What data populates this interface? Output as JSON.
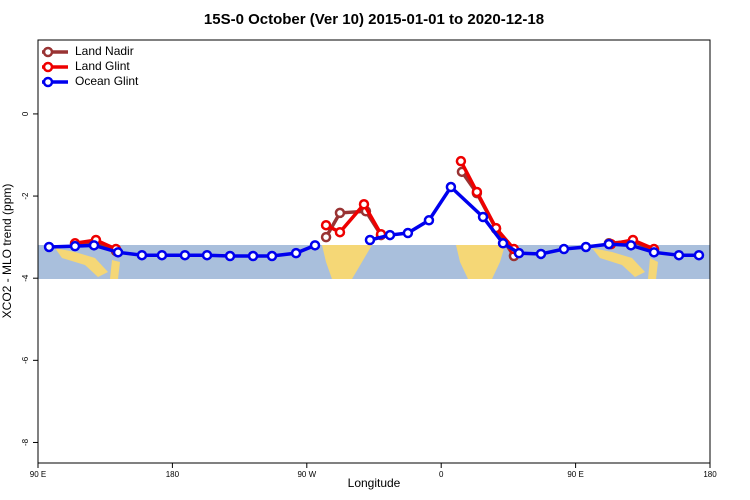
{
  "chart_data": {
    "type": "line",
    "title": "15S-0 October (Ver 10)   2015-01-01 to 2020-12-18",
    "x_label": "Longitude",
    "y_label": "XCO2 - MLO trend (ppm)",
    "xlim": [
      90,
      540
    ],
    "xticks": [
      {
        "value": 90,
        "label": "90 E"
      },
      180,
      {
        "value": 270,
        "label": "90 W"
      },
      {
        "value": 360,
        "label": "0"
      },
      {
        "value": 450,
        "label": "90 E"
      },
      {
        "value": 540,
        "label": "180"
      }
    ],
    "ylim": [
      -8.5,
      1.8
    ],
    "yticks": [
      0,
      -2,
      -4,
      -6,
      -8
    ],
    "legend": "top-left",
    "series": [
      {
        "name": "Land Nadir",
        "color": "#993333",
        "x": [
          114.8,
          128.8,
          142.2,
          null,
          282.9,
          292.2,
          309.6,
          319.7,
          null,
          373.9,
          383.9,
          396.7,
          408.7,
          null,
          472.3,
          488.4,
          502.5
        ],
        "values": [
          -3.17,
          -3.12,
          -3.34,
          null,
          -3.0,
          -2.41,
          -2.37,
          -2.95,
          null,
          -1.41,
          -1.93,
          -2.8,
          -3.46,
          null,
          -3.15,
          -3.1,
          -3.32
        ]
      },
      {
        "name": "Land Glint",
        "color": "#ee0000",
        "x": [
          114.8,
          128.8,
          142.2,
          null,
          282.9,
          292.2,
          308.3,
          319.7,
          null,
          373.2,
          383.9,
          396.7,
          408.7,
          null,
          473.7,
          488.4,
          502.5
        ],
        "values": [
          -3.15,
          -3.07,
          -3.29,
          null,
          -2.71,
          -2.88,
          -2.2,
          -2.93,
          null,
          -1.15,
          -1.9,
          -2.78,
          -3.29,
          null,
          -3.17,
          -3.07,
          -3.29
        ]
      },
      {
        "name": "Ocean Glint",
        "color": "#0000ee",
        "x": [
          97.4,
          114.8,
          127.5,
          143.6,
          159.6,
          173.0,
          188.4,
          203.2,
          218.6,
          234.0,
          246.7,
          262.8,
          275.5,
          null,
          312.3,
          325.7,
          337.7,
          351.8,
          366.5,
          388.0,
          401.4,
          412.1,
          426.8,
          442.2,
          456.9,
          472.3,
          487.1,
          502.5,
          519.2,
          532.6
        ],
        "values": [
          -3.24,
          -3.22,
          -3.2,
          -3.37,
          -3.44,
          -3.44,
          -3.44,
          -3.44,
          -3.46,
          -3.46,
          -3.46,
          -3.39,
          -3.2,
          null,
          -3.07,
          -2.95,
          -2.9,
          -2.59,
          -1.78,
          -2.51,
          -3.15,
          -3.39,
          -3.41,
          -3.29,
          -3.24,
          -3.17,
          -3.2,
          -3.37,
          -3.44,
          -3.44
        ]
      }
    ]
  }
}
